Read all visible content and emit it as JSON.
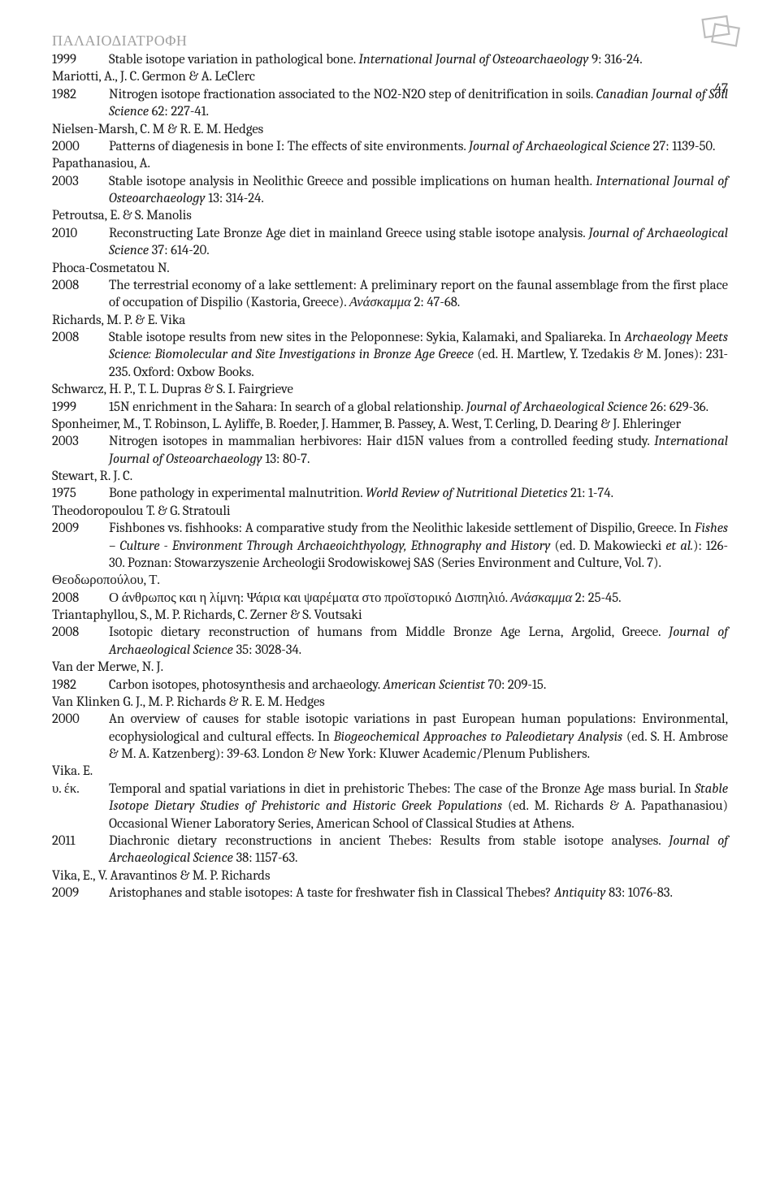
{
  "runningHead": "ΠΑΛΑΙΟΔΙΑΤΡΟΦΗ",
  "pageNumber": "47",
  "entries": [
    {
      "author": "",
      "lines": [
        {
          "year": "1999",
          "html": "Stable isotope variation in pathological bone. <em>International Journal of Osteoarchaeology</em> 9: 316-24."
        }
      ]
    },
    {
      "author": "Mariotti, A., J. C. Germon & A. LeClerc",
      "lines": [
        {
          "year": "1982",
          "html": "Nitrogen isotope fractionation associated to the NO2-N2O step of denitrification in soils. <em>Canadian Journal of Soil Science</em> 62: 227-41."
        }
      ]
    },
    {
      "author": "Nielsen-Marsh, C. M & R. E. M. Hedges",
      "lines": [
        {
          "year": "2000",
          "html": "Patterns of diagenesis in bone I: The effects of site environments. <em>Journal of Archaeological Science</em> 27: 1139-50."
        }
      ]
    },
    {
      "author": "Papathanasiou, A.",
      "lines": [
        {
          "year": "2003",
          "html": "Stable isotope analysis in Neolithic Greece and possible implications on human health. <em>International Journal of Osteoarchaeology</em> 13: 314-24."
        }
      ]
    },
    {
      "author": "Petroutsa, E. & S. Manolis",
      "lines": [
        {
          "year": "2010",
          "html": "Reconstructing Late Bronze Age diet in mainland Greece using stable isotope analysis. <em>Journal of Archaeological Science</em> 37: 614-20."
        }
      ]
    },
    {
      "author": "Phoca-Cosmetatou N.",
      "lines": [
        {
          "year": "2008",
          "html": "The terrestrial economy of a lake settlement: A preliminary report on the faunal assemblage from the first place of occupation of Dispilio (Kastoria, Greece). <em>Ανάσκαμμα</em> 2: 47-68."
        }
      ]
    },
    {
      "author": "Richards, M. P. & E. Vika",
      "lines": [
        {
          "year": "2008",
          "html": "Stable isotope results from new sites in the Peloponnese: Sykia, Kalamaki, and Spaliareka. In <em>Archaeology Meets Science: Biomolecular and Site Investigations in Bronze Age Greece</em> (ed. H. Martlew, Y. Tzedakis & M. Jones): 231-235. Oxford: Oxbow Books."
        }
      ]
    },
    {
      "author": "Schwarcz, H. P., T. L. Dupras & S. I. Fairgrieve",
      "lines": [
        {
          "year": "1999",
          "html": "15N enrichment in the Sahara: In search of a global relationship. <em>Journal of Archaeological Science</em> 26: 629-36."
        }
      ]
    },
    {
      "author": "Sponheimer, M., T. Robinson, L. Ayliffe, B. Roeder, J. Hammer, B. Passey, A. West, T. Cerling, D. Dearing & J. Ehleringer",
      "lines": [
        {
          "year": "2003",
          "html": "Nitrogen isotopes in mammalian herbivores: Hair d15N values from a controlled feeding study. <em>International Journal of Osteoarchaeology</em> 13: 80-7."
        }
      ]
    },
    {
      "author": "Stewart, R. J. C.",
      "lines": [
        {
          "year": "1975",
          "html": "Bone pathology in experimental malnutrition. <em>World Review of Nutritional Dietetics</em> 21: 1-74."
        }
      ]
    },
    {
      "author": "Theodoropoulou T. & G. Stratouli",
      "lines": [
        {
          "year": "2009",
          "html": "Fishbones vs. fishhooks: A comparative study from the Neolithic lakeside settlement of Dispilio, Greece. In <em>Fishes – Culture - Environment Through Archaeoichthyology, Ethnography and History</em> (ed. D. Makowiecki <em>et al.</em>): 126-30. Poznan: Stowarzyszenie Archeologii Srodowiskowej SAS (Series Environment and Culture, Vol. 7)."
        }
      ]
    },
    {
      "author": "Θεοδωροπούλου, Τ.",
      "lines": [
        {
          "year": " 2008",
          "html": "Ο άνθρωπος και η λίμνη: Ψάρια και ψαρέματα στο προϊστορικό Δισπηλιό. <em>Ανάσκαμμα</em> 2: 25-45."
        }
      ]
    },
    {
      "author": "Triantaphyllou, S., M. P. Richards, C. Zerner & S. Voutsaki",
      "lines": [
        {
          "year": "2008",
          "html": "Isotopic dietary reconstruction of humans from Middle Bronze Age Lerna, Argolid, Greece. <em>Journal of Archaeological Science</em> 35: 3028-34."
        }
      ]
    },
    {
      "author": "Van der Merwe, N. J.",
      "lines": [
        {
          "year": "1982",
          "html": "Carbon isotopes, photosynthesis and archaeology. <em>American Scientist</em> 70: 209-15."
        }
      ]
    },
    {
      "author": "Van Klinken G. J., M. P. Richards & R. E. M. Hedges",
      "lines": [
        {
          "year": "2000",
          "html": "An overview of causes for stable isotopic variations in past European human populations: Environmental, ecophysiological and cultural effects. In <em>Biogeochemical Approaches to Paleodietary Analysis</em> (ed. S. H. Ambrose & M. A. Katzenberg): 39-63. London & New York: Kluwer Academic/Plenum Publishers."
        }
      ]
    },
    {
      "author": "Vika. E.",
      "lines": [
        {
          "year": "υ. έκ.",
          "html": "Temporal and spatial variations in diet in prehistoric Thebes: The case of the Bronze Age mass burial. In <em>Stable Isotope Dietary Studies of Prehistoric and Historic Greek Populations</em> (ed. M. Richards & A. Papathanasiou) Occasional Wiener Laboratory Series, American School of Classical Studies at Athens."
        },
        {
          "year": "2011",
          "html": "Diachronic dietary reconstructions in ancient Thebes: Results from stable isotope analyses. <em>Journal of Archaeological Science</em> 38: 1157-63."
        }
      ]
    },
    {
      "author": "Vika, E., V. Aravantinos & M. P. Richards",
      "lines": [
        {
          "year": "2009",
          "html": "Aristophanes and stable isotopes: A taste for freshwater fish in Classical Thebes? <em>Antiquity</em> 83: 1076-83."
        }
      ]
    }
  ]
}
